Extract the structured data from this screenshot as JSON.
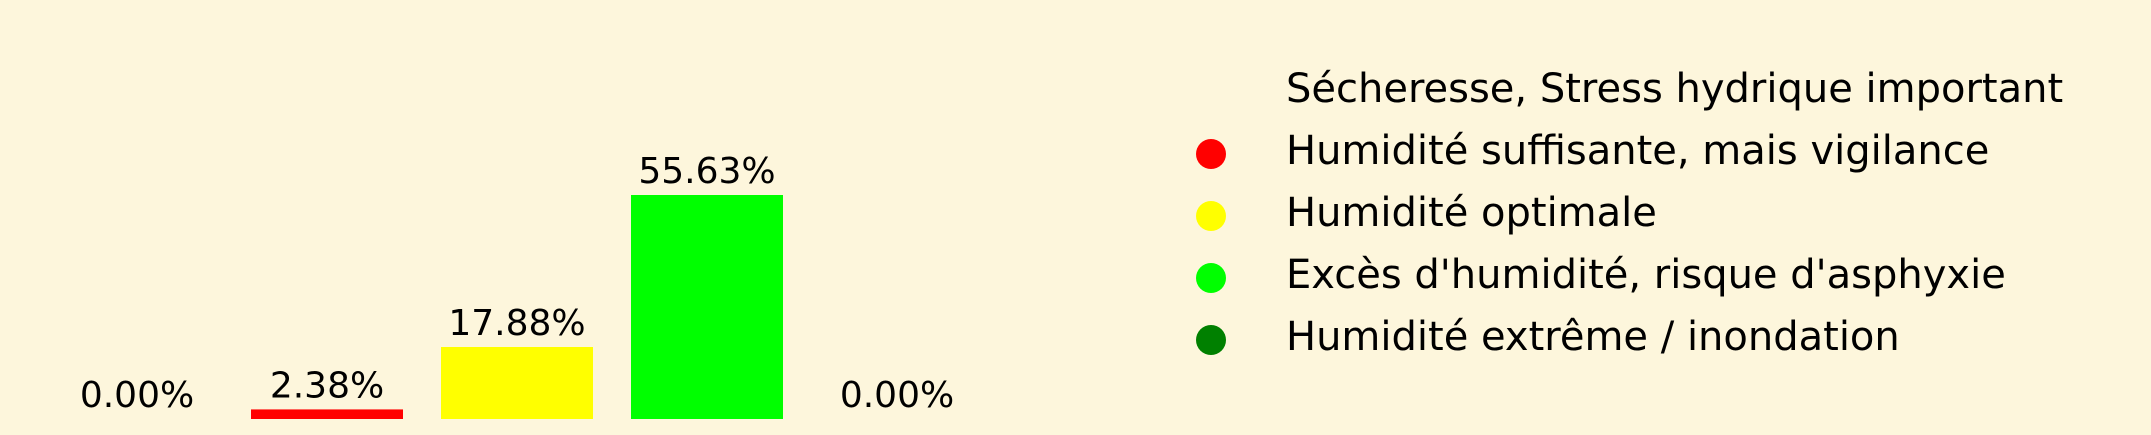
{
  "chart_data": {
    "type": "bar",
    "categories": [
      "Sécheresse, Stress hydrique important",
      "Humidité suffisante, mais vigilance",
      "Humidité optimale",
      "Excès d'humidité, risque d'asphyxie",
      "Humidité extrême / inondation"
    ],
    "values": [
      0.0,
      2.38,
      17.88,
      55.63,
      0.0
    ],
    "value_labels": [
      "0.00%",
      "2.38%",
      "17.88%",
      "55.63%",
      "0.00%"
    ],
    "colors": [
      "#fdf6dc",
      "#ff0000",
      "#ffff00",
      "#00ff00",
      "#008000"
    ],
    "legend_position": "right",
    "grid": false,
    "axes_visible": false
  }
}
